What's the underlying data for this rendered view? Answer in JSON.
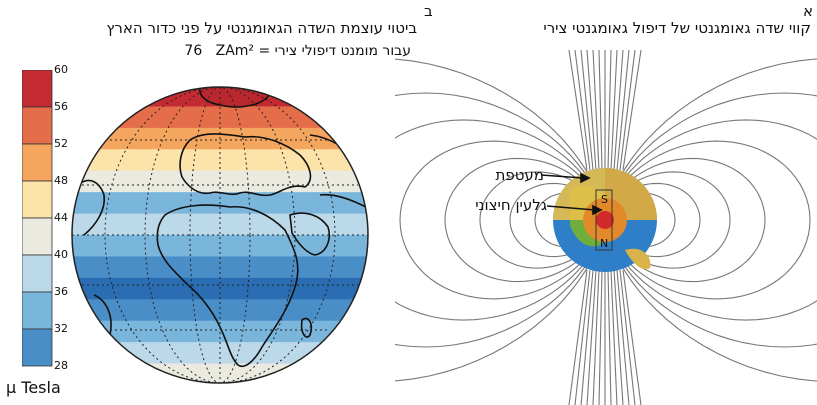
{
  "panel_b": {
    "letter": "ב",
    "title_line1": "ביטוי עוצמת השדה הגאומגנטי על פני כדור הארץ",
    "title_line2_prefix": "עבור מומנט דיפולי צירי = ",
    "moment_unit": "ZAm²",
    "moment_value": "76",
    "units": "μ Tesla",
    "colorbar_ticks": [
      "60",
      "56",
      "52",
      "48",
      "44",
      "40",
      "36",
      "32",
      "28"
    ],
    "colorbar_colors": [
      "#c42a32",
      "#e46d4a",
      "#f4a65e",
      "#fbe3aa",
      "#eaeae0",
      "#bcd9ea",
      "#7ab6dc",
      "#4a8ec8",
      "#2a6db3"
    ]
  },
  "panel_a": {
    "letter": "א",
    "title": "קווי שדה גאומגנטי של דיפול גאומגנטי צירי",
    "label_mantle": "מעטפת",
    "label_outer_core": "גלעין חיצוני",
    "pole_s": "S",
    "pole_n": "N"
  }
}
